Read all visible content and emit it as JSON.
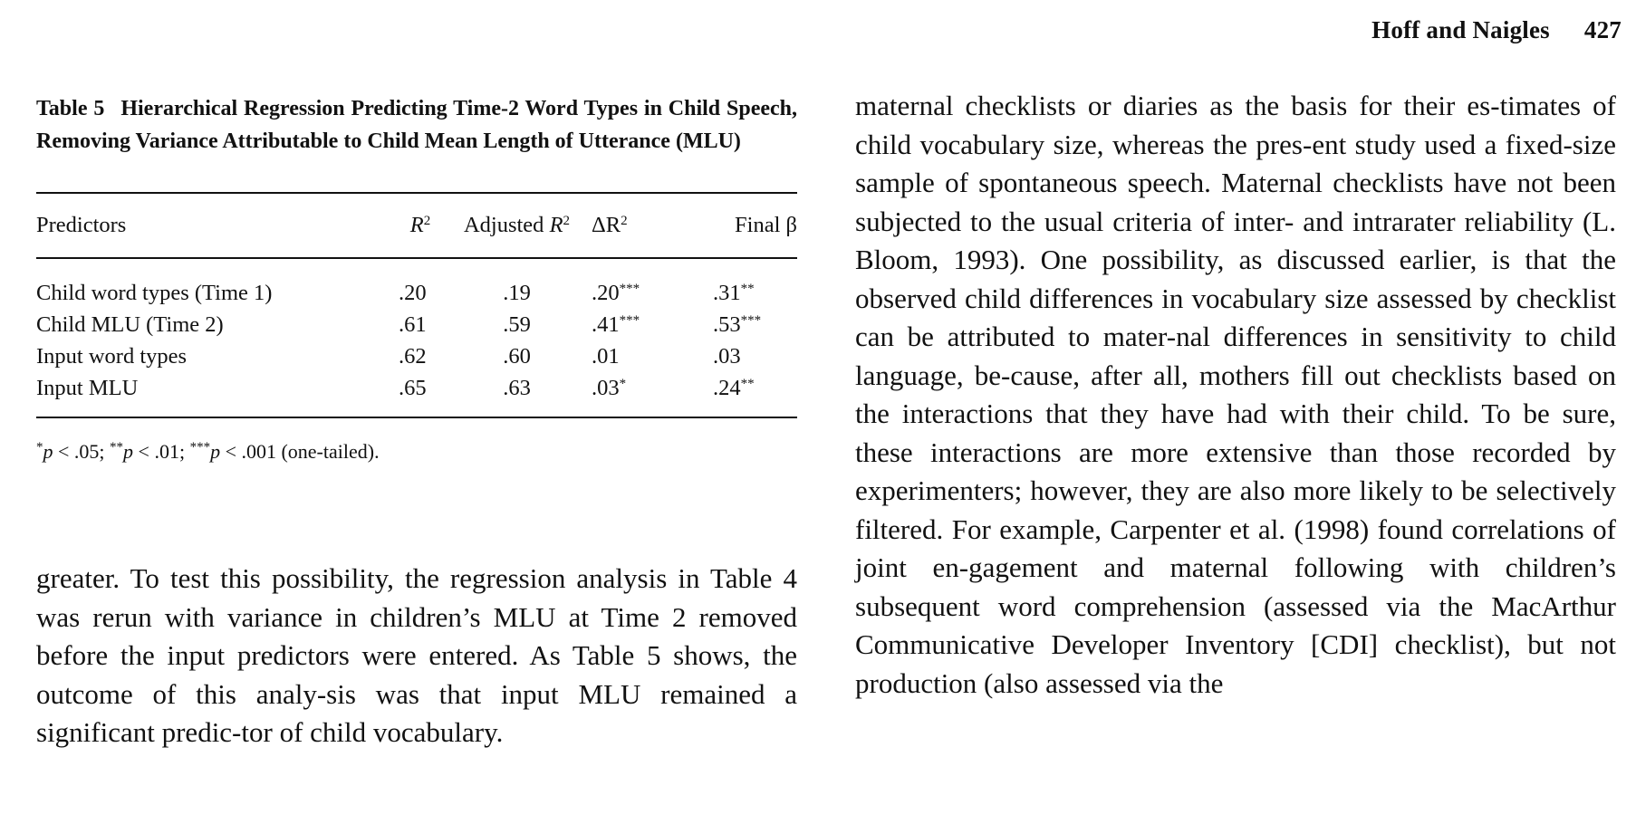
{
  "running_head": {
    "authors": "Hoff and Naigles",
    "page_number": "427"
  },
  "table": {
    "number": "Table 5",
    "caption": "Hierarchical Regression Predicting Time-2 Word Types in Child Speech, Removing Variance Attributable to Child Mean Length of Utterance (MLU)",
    "headers": {
      "predictors": "Predictors",
      "r2": "R",
      "r2_sup": "2",
      "adjusted": "Adjusted ",
      "adjusted_r": "R",
      "adjusted_sup": "2",
      "delta": "ΔR",
      "delta_sup": "2",
      "final_beta": "Final β"
    },
    "rows": [
      {
        "predictor": "Child word types (Time 1)",
        "r2": ".20",
        "adjusted_r2": ".19",
        "delta_r2": ".20",
        "delta_sig": "***",
        "final_beta": ".31",
        "beta_sig": "**"
      },
      {
        "predictor": "Child MLU (Time 2)",
        "r2": ".61",
        "adjusted_r2": ".59",
        "delta_r2": ".41",
        "delta_sig": "***",
        "final_beta": ".53",
        "beta_sig": "***"
      },
      {
        "predictor": "Input word types",
        "r2": ".62",
        "adjusted_r2": ".60",
        "delta_r2": ".01",
        "delta_sig": "",
        "final_beta": ".03",
        "beta_sig": ""
      },
      {
        "predictor": "Input MLU",
        "r2": ".65",
        "adjusted_r2": ".63",
        "delta_r2": ".03",
        "delta_sig": "*",
        "final_beta": ".24",
        "beta_sig": "**"
      }
    ],
    "footnote": {
      "s1": "*",
      "p1": "p",
      "v1": " < .05; ",
      "s2": "**",
      "p2": "p",
      "v2": " < .01; ",
      "s3": "***",
      "p3": "p",
      "v3": " < .001 (one-tailed)."
    }
  },
  "left_body_text": "greater. To test this possibility, the regression analysis in Table 4 was rerun with variance in children’s MLU at Time 2 removed before the input predictors were entered. As Table 5 shows, the outcome of this analy-sis was that input MLU remained a significant predic-tor of child vocabulary.",
  "right_body_text": "maternal checklists or diaries as the basis for their es-timates of child vocabulary size, whereas the pres-ent study used a fixed-size sample of spontaneous speech. Maternal checklists have not been subjected to the usual criteria of inter- and intrarater reliability (L. Bloom, 1993). One possibility, as discussed earlier, is that the observed child differences in vocabulary size assessed by checklist can be attributed to mater-nal differences in sensitivity to child language, be-cause, after all, mothers fill out checklists based on the interactions that they have had with their child. To be sure, these interactions are more extensive than those recorded by experimenters; however, they are also more likely to be selectively filtered. For example, Carpenter et al. (1998) found correlations of joint en-gagement and maternal following with children’s subsequent word comprehension (assessed via the MacArthur Communicative Developer Inventory [CDI] checklist), but not production (also assessed via the"
}
